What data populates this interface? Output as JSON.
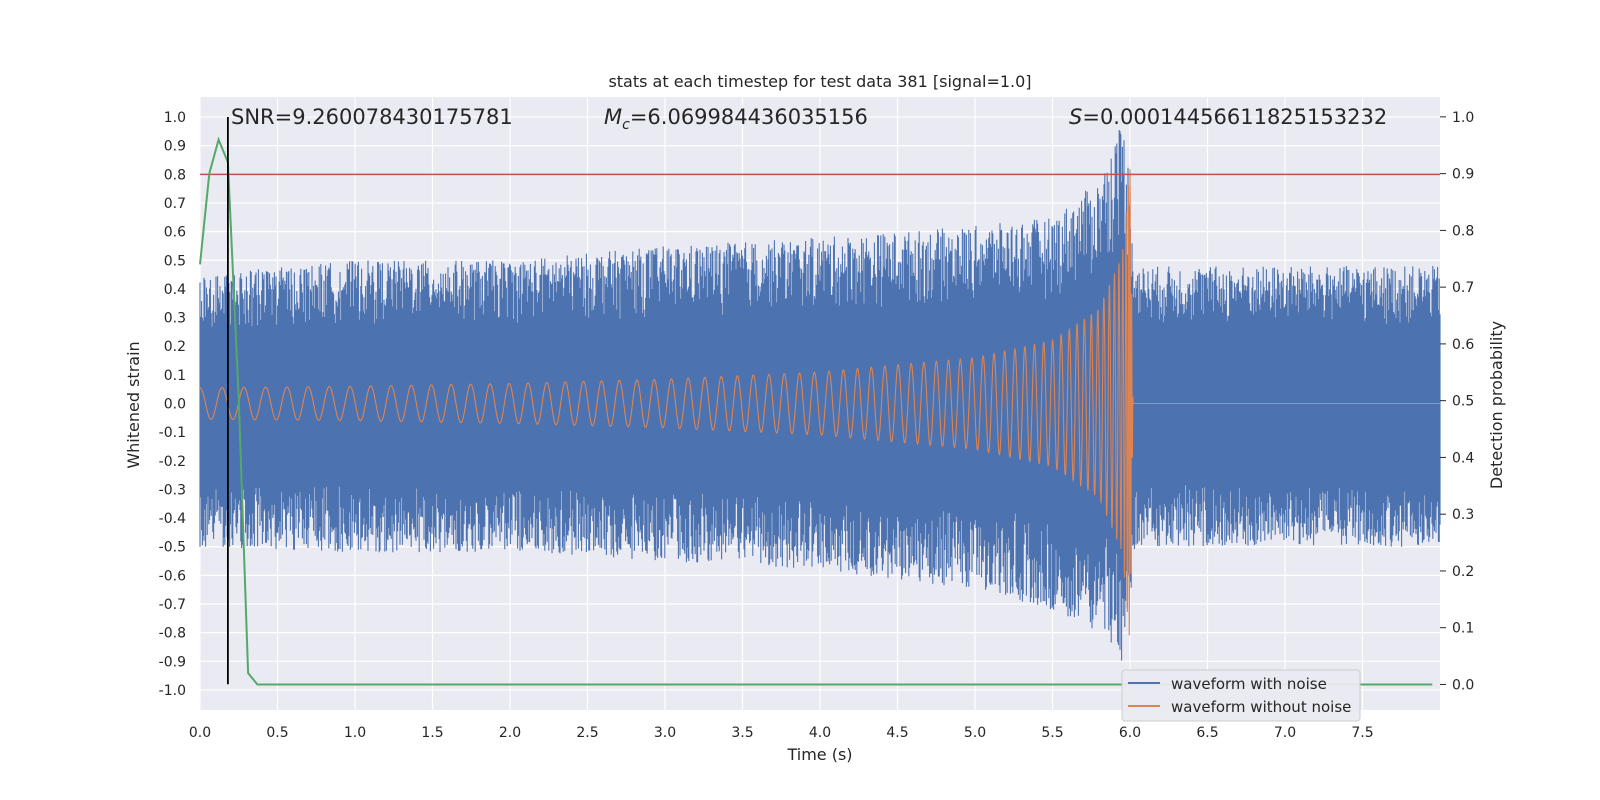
{
  "chart_data": {
    "type": "line",
    "title": "stats at each timestep for test data 381 [signal=1.0]",
    "xlabel": "Time (s)",
    "ylabel_left": "Whitened strain",
    "ylabel_right": "Detection probability",
    "xlim": [
      0.0,
      8.0
    ],
    "ylim_left": [
      -1.07,
      1.07
    ],
    "ylim_right": [
      -0.045,
      1.035
    ],
    "x_ticks": [
      "0.0",
      "0.5",
      "1.0",
      "1.5",
      "2.0",
      "2.5",
      "3.0",
      "3.5",
      "4.0",
      "4.5",
      "5.0",
      "5.5",
      "6.0",
      "6.5",
      "7.0",
      "7.5"
    ],
    "x_tick_values": [
      0.0,
      0.5,
      1.0,
      1.5,
      2.0,
      2.5,
      3.0,
      3.5,
      4.0,
      4.5,
      5.0,
      5.5,
      6.0,
      6.5,
      7.0,
      7.5
    ],
    "y_left_ticks": [
      "1.0",
      "0.9",
      "0.8",
      "0.7",
      "0.6",
      "0.5",
      "0.4",
      "0.3",
      "0.2",
      "0.1",
      "0.0",
      "-0.1",
      "-0.2",
      "-0.3",
      "-0.4",
      "-0.5",
      "-0.6",
      "-0.7",
      "-0.8",
      "-0.9",
      "-1.0"
    ],
    "y_left_tick_values": [
      1.0,
      0.9,
      0.8,
      0.7,
      0.6,
      0.5,
      0.4,
      0.3,
      0.2,
      0.1,
      0.0,
      -0.1,
      -0.2,
      -0.3,
      -0.4,
      -0.5,
      -0.6,
      -0.7,
      -0.8,
      -0.9,
      -1.0
    ],
    "y_right_ticks": [
      "1.0",
      "0.9",
      "0.8",
      "0.7",
      "0.6",
      "0.5",
      "0.4",
      "0.3",
      "0.2",
      "0.1",
      "0.0"
    ],
    "y_right_tick_values": [
      1.0,
      0.9,
      0.8,
      0.7,
      0.6,
      0.5,
      0.4,
      0.3,
      0.2,
      0.1,
      0.0
    ],
    "annotations": {
      "snr": "SNR=9.260078430175781",
      "mc_symbol": "M",
      "mc_sub": "c",
      "mc_value": "=6.069984436035156",
      "s_symbol": "S",
      "s_value": "=0.00014456611825153232"
    },
    "series": [
      {
        "name": "waveform with noise",
        "color": "#4c72b0",
        "description": "noisy whitened strain, envelope in strain units",
        "envelope": {
          "x": [
            0.0,
            1.0,
            2.0,
            3.0,
            4.0,
            5.0,
            5.5,
            5.8,
            5.95,
            6.0,
            6.03,
            8.0
          ],
          "upper": [
            0.45,
            0.5,
            0.5,
            0.55,
            0.58,
            0.62,
            0.65,
            0.78,
            1.0,
            0.8,
            0.48,
            0.48
          ],
          "lower": [
            -0.5,
            -0.52,
            -0.52,
            -0.55,
            -0.58,
            -0.65,
            -0.72,
            -0.8,
            -0.9,
            -0.7,
            -0.5,
            -0.5
          ]
        }
      },
      {
        "name": "waveform without noise",
        "color": "#dd8452",
        "description": "clean chirp amplitude envelope",
        "envelope": {
          "x": [
            0.0,
            1.0,
            2.0,
            3.0,
            4.0,
            5.0,
            5.5,
            5.8,
            5.95,
            6.0,
            6.02,
            8.0
          ],
          "amplitude": [
            0.055,
            0.06,
            0.07,
            0.085,
            0.11,
            0.16,
            0.22,
            0.33,
            0.52,
            0.85,
            0.0,
            0.0
          ]
        }
      },
      {
        "name": "detection probability",
        "axis": "right",
        "color": "#55a868",
        "x": [
          0.0,
          0.06,
          0.12,
          0.18,
          0.25,
          0.31,
          0.37,
          7.95
        ],
        "y": [
          0.74,
          0.9,
          0.96,
          0.92,
          0.5,
          0.02,
          0.0,
          0.0
        ]
      }
    ],
    "threshold_line": {
      "axis": "left",
      "y": 0.8,
      "color": "#c44e52"
    },
    "marker_line": {
      "x": 0.18,
      "y_from": -0.98,
      "y_to": 1.0,
      "color": "#000000"
    },
    "legend": {
      "location": "bottom-right",
      "entries": [
        "waveform with noise",
        "waveform without noise"
      ]
    }
  }
}
